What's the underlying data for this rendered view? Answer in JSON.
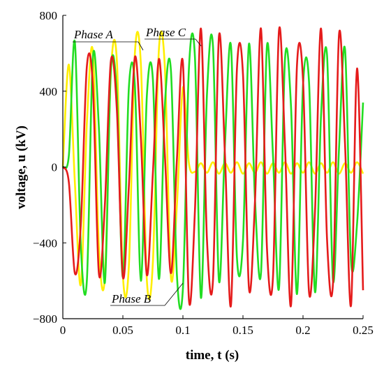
{
  "chart_data": {
    "type": "line",
    "xlabel": "time, t (s)",
    "ylabel": "voltage, u (kV)",
    "xlim": [
      0,
      0.25
    ],
    "ylim": [
      -800,
      800
    ],
    "x_ticks": [
      "0",
      "0.05",
      "0.1",
      "0.15",
      "0.2",
      "0.25"
    ],
    "y_ticks": [
      "800",
      "400",
      "0",
      "−400",
      "−800"
    ],
    "grid": false,
    "x_step": 0.005,
    "series": [
      {
        "name": "Phase A",
        "color": "#ffee00",
        "x": [
          0,
          0.005,
          0.01,
          0.015,
          0.02,
          0.025,
          0.03,
          0.035,
          0.04,
          0.045,
          0.05,
          0.055,
          0.06,
          0.065,
          0.07,
          0.075,
          0.08,
          0.085,
          0.09,
          0.095,
          0.1,
          0.105,
          0.11,
          0.115,
          0.12,
          0.125,
          0.13,
          0.135,
          0.14,
          0.145,
          0.15,
          0.155,
          0.16,
          0.165,
          0.17,
          0.175,
          0.18,
          0.185,
          0.19,
          0.195,
          0.2,
          0.205,
          0.21,
          0.215,
          0.22,
          0.225,
          0.23,
          0.235,
          0.24,
          0.245,
          0.25
        ],
        "values": [
          0,
          540,
          -80,
          -620,
          230,
          610,
          -420,
          -580,
          500,
          560,
          -570,
          -520,
          600,
          540,
          -600,
          -500,
          620,
          520,
          -580,
          -200,
          420,
          20,
          -25,
          20,
          -30,
          25,
          -35,
          20,
          -30,
          25,
          -35,
          20,
          -30,
          25,
          -35,
          20,
          -30,
          25,
          -35,
          20,
          -30,
          25,
          -35,
          20,
          -30,
          25,
          -35,
          20,
          -30,
          25,
          -35
        ]
      },
      {
        "name": "Phase B",
        "color": "#22dd22",
        "x": [
          0,
          0.005,
          0.01,
          0.015,
          0.02,
          0.025,
          0.03,
          0.035,
          0.04,
          0.045,
          0.05,
          0.055,
          0.06,
          0.065,
          0.07,
          0.075,
          0.08,
          0.085,
          0.09,
          0.095,
          0.1,
          0.105,
          0.11,
          0.115,
          0.12,
          0.125,
          0.13,
          0.135,
          0.14,
          0.145,
          0.15,
          0.155,
          0.16,
          0.165,
          0.17,
          0.175,
          0.18,
          0.185,
          0.19,
          0.195,
          0.2,
          0.205,
          0.21,
          0.215,
          0.22,
          0.225,
          0.23,
          0.235,
          0.24,
          0.245,
          0.25
        ],
        "values": [
          0,
          60,
          660,
          -420,
          -600,
          580,
          210,
          -610,
          510,
          380,
          -580,
          420,
          430,
          -600,
          380,
          460,
          -590,
          330,
          510,
          -570,
          -640,
          520,
          580,
          -690,
          380,
          640,
          -600,
          120,
          640,
          -480,
          -390,
          650,
          -170,
          -560,
          640,
          60,
          -640,
          570,
          320,
          -670,
          430,
          450,
          -660,
          270,
          590,
          -600,
          100,
          620,
          -500,
          -300,
          340
        ]
      },
      {
        "name": "Phase C",
        "color": "#e51b1b",
        "x": [
          0,
          0.005,
          0.01,
          0.015,
          0.02,
          0.025,
          0.03,
          0.035,
          0.04,
          0.045,
          0.05,
          0.055,
          0.06,
          0.065,
          0.07,
          0.075,
          0.08,
          0.085,
          0.09,
          0.095,
          0.1,
          0.105,
          0.11,
          0.115,
          0.12,
          0.125,
          0.13,
          0.135,
          0.14,
          0.145,
          0.15,
          0.155,
          0.16,
          0.165,
          0.17,
          0.175,
          0.18,
          0.185,
          0.19,
          0.195,
          0.2,
          0.205,
          0.21,
          0.215,
          0.22,
          0.225,
          0.23,
          0.235,
          0.24,
          0.245,
          0.25
        ],
        "values": [
          0,
          -80,
          -560,
          -300,
          530,
          430,
          -560,
          -200,
          560,
          300,
          -580,
          -100,
          580,
          150,
          -570,
          -30,
          570,
          60,
          -560,
          40,
          550,
          -700,
          -230,
          730,
          -380,
          -600,
          690,
          60,
          -730,
          520,
          490,
          -640,
          -180,
          730,
          -430,
          -580,
          720,
          110,
          -730,
          540,
          460,
          -660,
          -230,
          730,
          -380,
          -610,
          700,
          120,
          -730,
          520,
          -650
        ]
      }
    ],
    "annotations": [
      "Phase A",
      "Phase C",
      "Phase B"
    ]
  }
}
